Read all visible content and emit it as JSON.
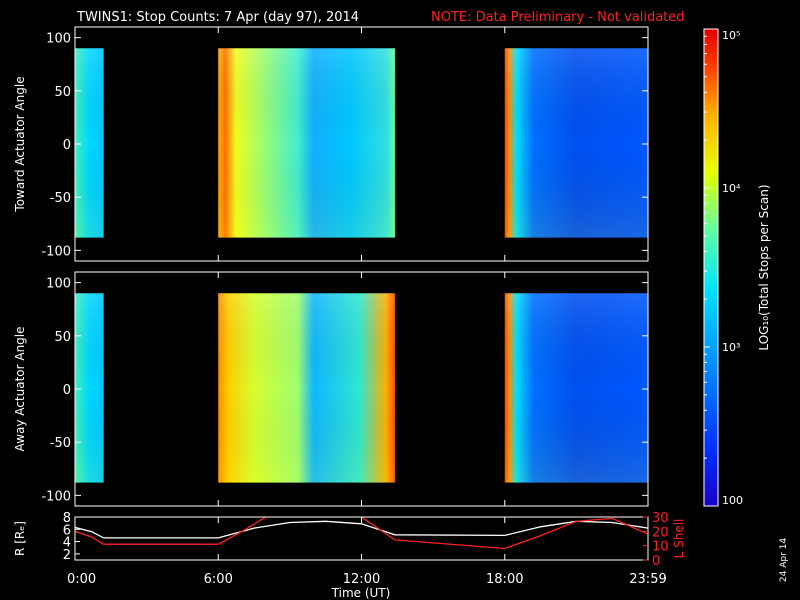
{
  "header": {
    "title_white": "TWINS1: Stop Counts:  7 Apr (day  97), 2014",
    "title_red": "NOTE: Data Preliminary - Not validated"
  },
  "chart_data": [
    {
      "type": "heatmap",
      "name": "toward",
      "ylabel": "Toward Actuator Angle",
      "ylim": [
        -110,
        110
      ],
      "yticks": [
        "100",
        "50",
        "0",
        "-50",
        "-100"
      ],
      "x_range_hours": [
        0,
        24
      ],
      "data_y_range": [
        -88,
        90
      ],
      "data_segments_hours": [
        [
          0.0,
          1.2
        ],
        [
          6.0,
          13.4
        ],
        [
          18.0,
          24.0
        ]
      ],
      "color_scale": {
        "label": "LOG₁₀(Total Stops per Scan)",
        "min": 100,
        "max": 100000,
        "log": true,
        "ticks": [
          "10⁵",
          "10⁴",
          "10³",
          "100"
        ]
      }
    },
    {
      "type": "heatmap",
      "name": "away",
      "ylabel": "Away Actuator Angle",
      "ylim": [
        -110,
        110
      ],
      "yticks": [
        "100",
        "50",
        "0",
        "-50",
        "-100"
      ],
      "x_range_hours": [
        0,
        24
      ],
      "data_y_range": [
        -88,
        90
      ],
      "data_segments_hours": [
        [
          0.0,
          1.2
        ],
        [
          6.0,
          13.4
        ],
        [
          18.0,
          24.0
        ]
      ]
    },
    {
      "type": "line",
      "name": "orbit",
      "ylabel_left": "R [Rₑ]",
      "ylabel_right": "L Shell",
      "xlabel": "Time (UT)",
      "xticks": [
        "0:00",
        "6:00",
        "12:00",
        "18:00",
        "23:59"
      ],
      "x_tick_hours": [
        0,
        6,
        12,
        18,
        24
      ],
      "yticks_left": [
        "8",
        "6",
        "4",
        "2"
      ],
      "yticks_right": [
        "30",
        "20",
        "10",
        "0"
      ],
      "ylim_left": [
        1,
        8
      ],
      "ylim_right": [
        0,
        30
      ],
      "series": [
        {
          "axis": "left",
          "color": "#ffffff",
          "x": [
            0,
            0.7,
            1.2,
            6.0,
            7.5,
            9.0,
            10.5,
            12.0,
            13.4,
            18.0,
            19.5,
            21.0,
            22.5,
            24.0
          ],
          "y": [
            6.3,
            5.6,
            4.6,
            4.6,
            6.2,
            7.1,
            7.3,
            6.9,
            5.1,
            5.0,
            6.4,
            7.3,
            7.1,
            6.2
          ]
        },
        {
          "axis": "right",
          "color": "#ff2020",
          "x": [
            0,
            0.7,
            1.2,
            6.0,
            7.0,
            8.0,
            9.5,
            11.0,
            12.0,
            13.4,
            18.0,
            19.5,
            21.0,
            22.5,
            24.0
          ],
          "y": [
            20.0,
            16.0,
            11.0,
            11.0,
            20.0,
            30.0,
            31.0,
            31.0,
            30.0,
            14.0,
            8.0,
            17.0,
            27.0,
            29.0,
            18.0
          ]
        }
      ]
    }
  ],
  "footer": {
    "date_stamp": "24 Apr 14"
  },
  "colors": {
    "background": "#000000",
    "frame": "#ffffff",
    "note": "#ff2020",
    "colormap": [
      "#1a00c8",
      "#0030ff",
      "#0090ff",
      "#00e0ff",
      "#60ffa0",
      "#e8ff00",
      "#ffb000",
      "#ff4000",
      "#e00000"
    ]
  }
}
